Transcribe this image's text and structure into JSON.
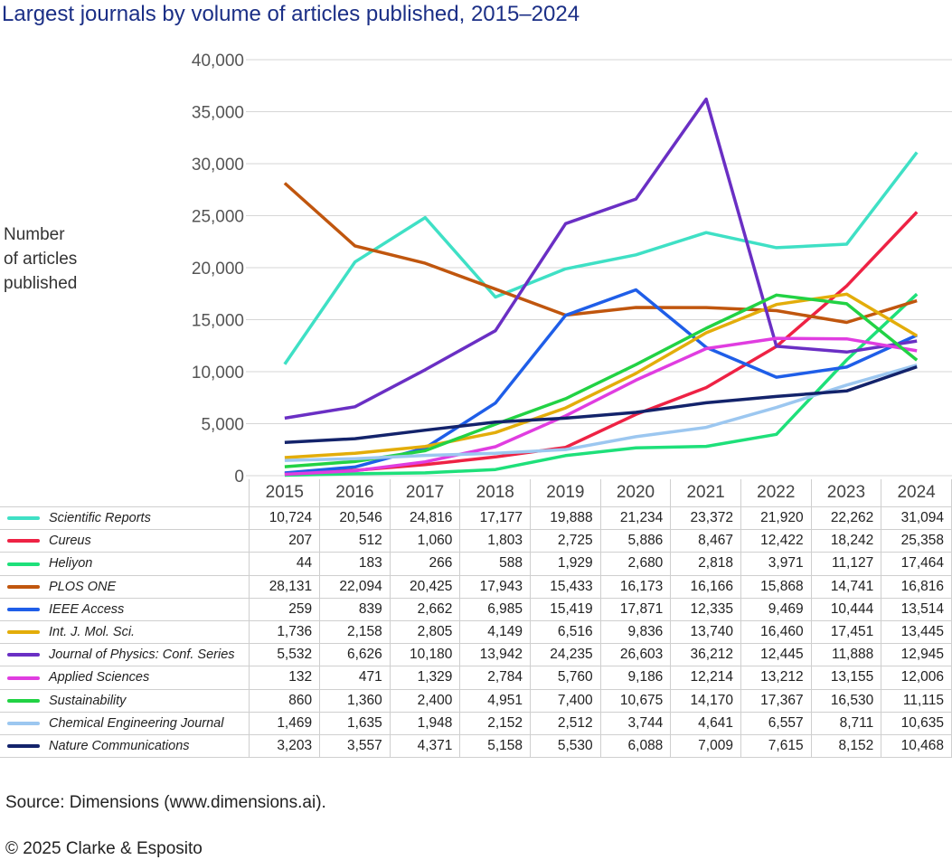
{
  "title": "Largest journals by volume of articles published, 2015–2024",
  "ylabel": "Number\nof articles\npublished",
  "source": "Source: Dimensions (www.dimensions.ai).",
  "copyright": "© 2025 Clarke & Esposito",
  "chart_data": {
    "type": "line",
    "title": "Largest journals by volume of articles published, 2015–2024",
    "xlabel": "",
    "ylabel": "Number of articles published",
    "ylim": [
      0,
      40000
    ],
    "yticks": [
      "0",
      "5,000",
      "10,000",
      "15,000",
      "20,000",
      "25,000",
      "30,000",
      "35,000",
      "40,000"
    ],
    "grid": true,
    "legend": "table-below",
    "x": [
      "2015",
      "2016",
      "2017",
      "2018",
      "2019",
      "2020",
      "2021",
      "2022",
      "2023",
      "2024"
    ],
    "series": [
      {
        "name": "Scientific Reports",
        "color": "#3fe0c5",
        "values": [
          10724,
          20546,
          24816,
          17177,
          19888,
          21234,
          23372,
          21920,
          22262,
          31094
        ],
        "labels": [
          "10,724",
          "20,546",
          "24,816",
          "17,177",
          "19,888",
          "21,234",
          "23,372",
          "21,920",
          "22,262",
          "31,094"
        ]
      },
      {
        "name": "Cureus",
        "color": "#ee2244",
        "values": [
          207,
          512,
          1060,
          1803,
          2725,
          5886,
          8467,
          12422,
          18242,
          25358
        ],
        "labels": [
          "207",
          "512",
          "1,060",
          "1,803",
          "2,725",
          "5,886",
          "8,467",
          "12,422",
          "18,242",
          "25,358"
        ]
      },
      {
        "name": "Heliyon",
        "color": "#1ee07a",
        "values": [
          44,
          183,
          266,
          588,
          1929,
          2680,
          2818,
          3971,
          11127,
          17464
        ],
        "labels": [
          "44",
          "183",
          "266",
          "588",
          "1,929",
          "2,680",
          "2,818",
          "3,971",
          "11,127",
          "17,464"
        ]
      },
      {
        "name": "PLOS ONE",
        "color": "#c0560e",
        "values": [
          28131,
          22094,
          20425,
          17943,
          15433,
          16173,
          16166,
          15868,
          14741,
          16816
        ],
        "labels": [
          "28,131",
          "22,094",
          "20,425",
          "17,943",
          "15,433",
          "16,173",
          "16,166",
          "15,868",
          "14,741",
          "16,816"
        ]
      },
      {
        "name": "IEEE Access",
        "color": "#1f5ee8",
        "values": [
          259,
          839,
          2662,
          6985,
          15419,
          17871,
          12335,
          9469,
          10444,
          13514
        ],
        "labels": [
          "259",
          "839",
          "2,662",
          "6,985",
          "15,419",
          "17,871",
          "12,335",
          "9,469",
          "10,444",
          "13,514"
        ]
      },
      {
        "name": "Int. J. Mol. Sci.",
        "color": "#e3ad0a",
        "values": [
          1736,
          2158,
          2805,
          4149,
          6516,
          9836,
          13740,
          16460,
          17451,
          13445
        ],
        "labels": [
          "1,736",
          "2,158",
          "2,805",
          "4,149",
          "6,516",
          "9,836",
          "13,740",
          "16,460",
          "17,451",
          "13,445"
        ]
      },
      {
        "name": "Journal of Physics: Conf. Series",
        "color": "#6a2fc4",
        "values": [
          5532,
          6626,
          10180,
          13942,
          24235,
          26603,
          36212,
          12445,
          11888,
          12945
        ],
        "labels": [
          "5,532",
          "6,626",
          "10,180",
          "13,942",
          "24,235",
          "26,603",
          "36,212",
          "12,445",
          "11,888",
          "12,945"
        ]
      },
      {
        "name": "Applied Sciences",
        "color": "#e03de0",
        "values": [
          132,
          471,
          1329,
          2784,
          5760,
          9186,
          12214,
          13212,
          13155,
          12006
        ],
        "labels": [
          "132",
          "471",
          "1,329",
          "2,784",
          "5,760",
          "9,186",
          "12,214",
          "13,212",
          "13,155",
          "12,006"
        ]
      },
      {
        "name": "Sustainability",
        "color": "#22d244",
        "values": [
          860,
          1360,
          2400,
          4951,
          7400,
          10675,
          14170,
          17367,
          16530,
          11115
        ],
        "labels": [
          "860",
          "1,360",
          "2,400",
          "4,951",
          "7,400",
          "10,675",
          "14,170",
          "17,367",
          "16,530",
          "11,115"
        ]
      },
      {
        "name": "Chemical Engineering Journal",
        "color": "#9cc7f0",
        "values": [
          1469,
          1635,
          1948,
          2152,
          2512,
          3744,
          4641,
          6557,
          8711,
          10635
        ],
        "labels": [
          "1,469",
          "1,635",
          "1,948",
          "2,152",
          "2,512",
          "3,744",
          "4,641",
          "6,557",
          "8,711",
          "10,635"
        ]
      },
      {
        "name": "Nature Communications",
        "color": "#13236b",
        "values": [
          3203,
          3557,
          4371,
          5158,
          5530,
          6088,
          7009,
          7615,
          8152,
          10468
        ],
        "labels": [
          "3,203",
          "3,557",
          "4,371",
          "5,158",
          "5,530",
          "6,088",
          "7,009",
          "7,615",
          "8,152",
          "10,468"
        ]
      }
    ]
  }
}
